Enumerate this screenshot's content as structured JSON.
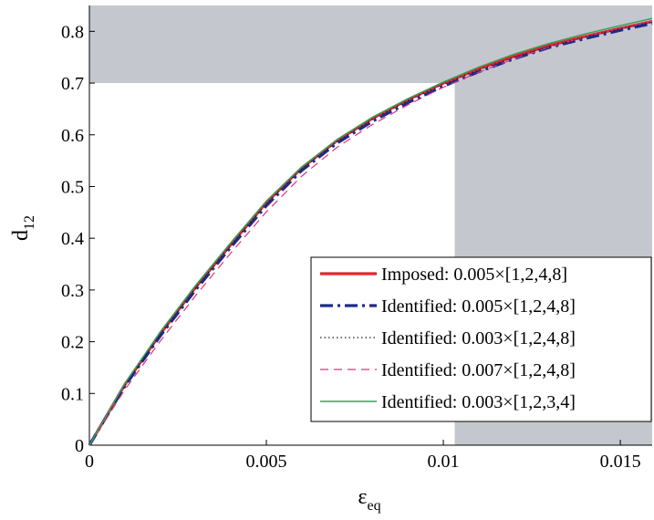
{
  "chart_data": {
    "type": "line",
    "xlabel": {
      "main": "ε",
      "sub": "eq"
    },
    "ylabel": {
      "main": "d",
      "sub": "12"
    },
    "xlim": [
      0,
      0.0159
    ],
    "ylim": [
      0,
      0.85
    ],
    "xticks": [
      {
        "value": 0,
        "label": "0"
      },
      {
        "value": 0.005,
        "label": "0.005"
      },
      {
        "value": 0.01,
        "label": "0.01"
      },
      {
        "value": 0.015,
        "label": "0.015"
      }
    ],
    "yticks": [
      {
        "value": 0,
        "label": "0"
      },
      {
        "value": 0.1,
        "label": "0.1"
      },
      {
        "value": 0.2,
        "label": "0.2"
      },
      {
        "value": 0.3,
        "label": "0.3"
      },
      {
        "value": 0.4,
        "label": "0.4"
      },
      {
        "value": 0.5,
        "label": "0.5"
      },
      {
        "value": 0.6,
        "label": "0.6"
      },
      {
        "value": 0.7,
        "label": "0.7"
      },
      {
        "value": 0.8,
        "label": "0.8"
      }
    ],
    "grid": false,
    "legend_position": "bottom-right",
    "shaded_regions": [
      {
        "x": [
          0,
          0.0159
        ],
        "y": [
          0.7,
          0.85
        ],
        "color": "#c4c7ce"
      },
      {
        "x": [
          0.01032,
          0.0159
        ],
        "y": [
          0,
          0.85
        ],
        "color": "#c4c7ce"
      }
    ],
    "series": [
      {
        "name": "Imposed: 0.005×[1,2,4,8]",
        "color": "#e2262b",
        "style": "solid",
        "width": 3.2,
        "x": [
          0,
          0.001,
          0.002,
          0.003,
          0.004,
          0.005,
          0.006,
          0.007,
          0.008,
          0.009,
          0.01,
          0.011,
          0.012,
          0.013,
          0.014,
          0.015,
          0.0159
        ],
        "y": [
          0,
          0.117,
          0.215,
          0.305,
          0.388,
          0.469,
          0.536,
          0.589,
          0.632,
          0.668,
          0.7,
          0.728,
          0.752,
          0.773,
          0.79,
          0.806,
          0.819
        ]
      },
      {
        "name": "Identified: 0.005×[1,2,4,8]",
        "color": "#1f2a8a",
        "style": "dashdot",
        "width": 3.2,
        "x": [
          0,
          0.001,
          0.002,
          0.003,
          0.004,
          0.005,
          0.006,
          0.007,
          0.008,
          0.009,
          0.01,
          0.011,
          0.012,
          0.013,
          0.014,
          0.015,
          0.0159
        ],
        "y": [
          0,
          0.114,
          0.211,
          0.3,
          0.383,
          0.463,
          0.531,
          0.584,
          0.626,
          0.662,
          0.694,
          0.722,
          0.747,
          0.769,
          0.786,
          0.802,
          0.815
        ]
      },
      {
        "name": "Identified: 0.003×[1,2,4,8]",
        "color": "#222222",
        "style": "dotted",
        "width": 1.2,
        "x": [
          0,
          0.001,
          0.002,
          0.003,
          0.004,
          0.005,
          0.006,
          0.007,
          0.008,
          0.009,
          0.01,
          0.011,
          0.012,
          0.013,
          0.014,
          0.015,
          0.0159
        ],
        "y": [
          0,
          0.116,
          0.214,
          0.304,
          0.387,
          0.467,
          0.534,
          0.587,
          0.63,
          0.666,
          0.698,
          0.726,
          0.75,
          0.771,
          0.789,
          0.805,
          0.818
        ]
      },
      {
        "name": "Identified: 0.007×[1,2,4,8]",
        "color": "#e0337a",
        "style": "dashed",
        "width": 1.2,
        "x": [
          0,
          0.001,
          0.002,
          0.003,
          0.004,
          0.005,
          0.006,
          0.007,
          0.008,
          0.009,
          0.01,
          0.011,
          0.012,
          0.013,
          0.014,
          0.015,
          0.0159
        ],
        "y": [
          0,
          0.107,
          0.201,
          0.289,
          0.372,
          0.451,
          0.52,
          0.576,
          0.62,
          0.658,
          0.692,
          0.721,
          0.747,
          0.77,
          0.789,
          0.806,
          0.82
        ]
      },
      {
        "name": "Identified: 0.003×[1,2,3,4]",
        "color": "#2ca55a",
        "style": "solid",
        "width": 1.4,
        "x": [
          0,
          0.001,
          0.002,
          0.003,
          0.004,
          0.005,
          0.006,
          0.007,
          0.008,
          0.009,
          0.01,
          0.011,
          0.012,
          0.013,
          0.014,
          0.015,
          0.0159
        ],
        "y": [
          0,
          0.119,
          0.219,
          0.309,
          0.392,
          0.472,
          0.538,
          0.591,
          0.634,
          0.67,
          0.702,
          0.731,
          0.756,
          0.777,
          0.795,
          0.811,
          0.825
        ]
      }
    ]
  }
}
